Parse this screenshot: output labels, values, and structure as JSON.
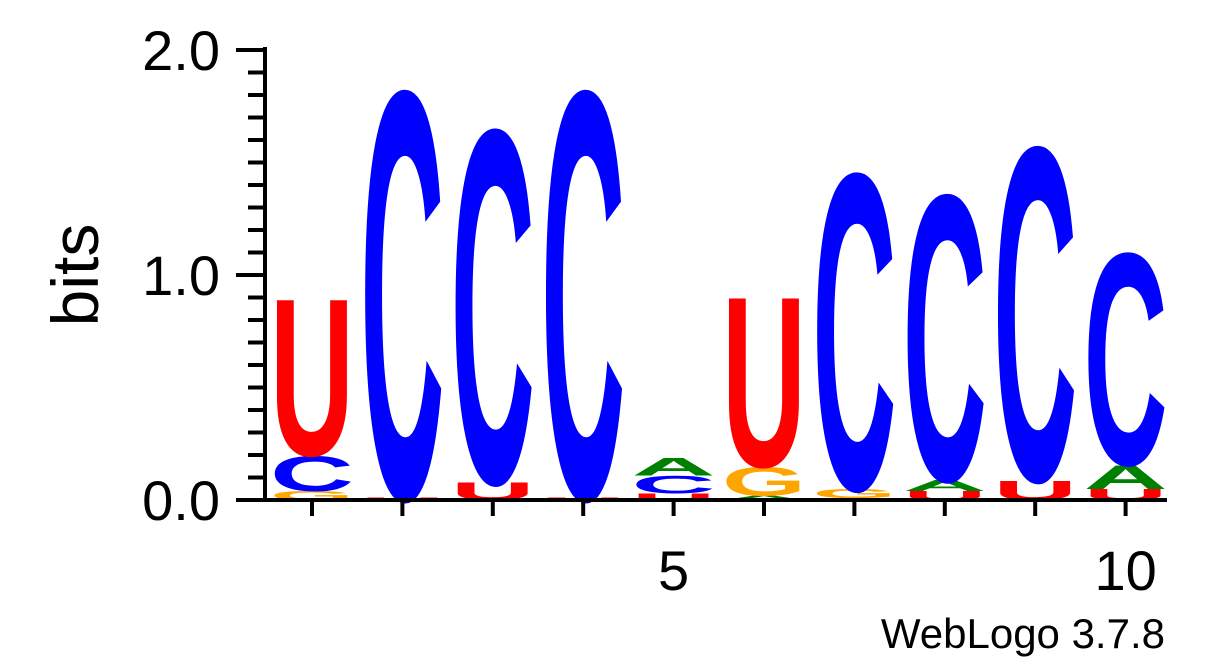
{
  "chart_data": {
    "type": "sequence-logo",
    "ylabel": "bits",
    "ylim": [
      0,
      2.0
    ],
    "yticks": [
      "0.0",
      "1.0",
      "2.0"
    ],
    "xticks": [
      {
        "pos": 5,
        "label": "5"
      },
      {
        "pos": 10,
        "label": "10"
      }
    ],
    "credit": "WebLogo 3.7.8",
    "colors": {
      "A": "#008000",
      "C": "#0000ff",
      "G": "#ffa500",
      "U": "#ff0000"
    },
    "positions": [
      {
        "pos": 1,
        "stack": [
          {
            "letter": "G",
            "bits": 0.04
          },
          {
            "letter": "C",
            "bits": 0.16
          },
          {
            "letter": "U",
            "bits": 0.72
          }
        ]
      },
      {
        "pos": 2,
        "stack": [
          {
            "letter": "U",
            "bits": 0.01
          },
          {
            "letter": "C",
            "bits": 1.87
          }
        ]
      },
      {
        "pos": 3,
        "stack": [
          {
            "letter": "U",
            "bits": 0.08
          },
          {
            "letter": "C",
            "bits": 1.62
          }
        ]
      },
      {
        "pos": 4,
        "stack": [
          {
            "letter": "U",
            "bits": 0.01
          },
          {
            "letter": "C",
            "bits": 1.87
          }
        ]
      },
      {
        "pos": 5,
        "stack": [
          {
            "letter": "U",
            "bits": 0.03
          },
          {
            "letter": "C",
            "bits": 0.08
          },
          {
            "letter": "A",
            "bits": 0.08
          }
        ]
      },
      {
        "pos": 6,
        "stack": [
          {
            "letter": "A",
            "bits": 0.02
          },
          {
            "letter": "G",
            "bits": 0.13
          },
          {
            "letter": "U",
            "bits": 0.78
          }
        ]
      },
      {
        "pos": 7,
        "stack": [
          {
            "letter": "A",
            "bits": 0.01
          },
          {
            "letter": "G",
            "bits": 0.04
          },
          {
            "letter": "C",
            "bits": 1.45
          }
        ]
      },
      {
        "pos": 8,
        "stack": [
          {
            "letter": "U",
            "bits": 0.04
          },
          {
            "letter": "A",
            "bits": 0.05
          },
          {
            "letter": "C",
            "bits": 1.31
          }
        ]
      },
      {
        "pos": 9,
        "stack": [
          {
            "letter": "U",
            "bits": 0.09
          },
          {
            "letter": "C",
            "bits": 1.53
          }
        ]
      },
      {
        "pos": 10,
        "stack": [
          {
            "letter": "U",
            "bits": 0.05
          },
          {
            "letter": "A",
            "bits": 0.11
          },
          {
            "letter": "C",
            "bits": 0.97
          }
        ]
      }
    ]
  }
}
